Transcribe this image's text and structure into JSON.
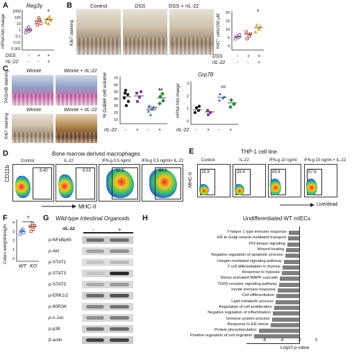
{
  "panels": {
    "A": {
      "label": "A",
      "gene": "Reg3γ",
      "ylabel": "mRNA fold change",
      "yticks": [
        "1000",
        "100",
        "10",
        "1",
        "0.1",
        "0.01",
        "0.001"
      ],
      "rows": [
        {
          "name": "DSS",
          "values": [
            "-",
            "+",
            "+"
          ]
        },
        {
          "name": "rIL-22",
          "values": [
            "-",
            "-",
            "+"
          ]
        }
      ],
      "star": "*"
    },
    "B": {
      "label": "B",
      "titles": [
        "Control",
        "DSS",
        "DSS + rIL-22"
      ],
      "stain": "Ki67 staining",
      "ylabel": "Ki67⁺ cells/150 μM",
      "yticks": [
        "20",
        "15",
        "10",
        "5",
        "0"
      ],
      "rows": [
        {
          "name": "DSS",
          "values": [
            "-",
            "+",
            "+"
          ]
        },
        {
          "name": "rIL-22",
          "values": [
            "-",
            "-",
            "+"
          ]
        }
      ],
      "star": "*"
    },
    "C": {
      "label": "C",
      "titles": [
        "Winnie",
        "Winnie + rIL-22"
      ],
      "stain_top": "PAS/AB staining",
      "stain_bottom": "Ki67 staining",
      "bottom_titles": [
        "Winnie",
        "Winnie + rIL-22"
      ],
      "goblet": {
        "ylabel": "% Goblet cell volume",
        "yticks": [
          "70",
          "60",
          "50",
          "40",
          "30",
          "20",
          "10"
        ],
        "sig1": "####",
        "sig2": "**",
        "row": {
          "name": "rIL-22",
          "values": [
            "-",
            "+",
            "-",
            "+"
          ]
        }
      },
      "grp": {
        "gene": "Grp78",
        "ylabel": "mRNA fold change",
        "yticks": [
          "3",
          "2",
          "1",
          "0"
        ],
        "sig": "##",
        "row": {
          "name": "rIL-22",
          "values": [
            "-",
            "+",
            "-",
            "+"
          ]
        }
      }
    },
    "D": {
      "label": "D",
      "title": "Bone marrow derived macrophages",
      "ylabel": "CD11b",
      "xlabel": "MHC-II",
      "plots": [
        {
          "title": "Control",
          "value": "6.40"
        },
        {
          "title": "IL-22",
          "value": "6.53"
        },
        {
          "title": "IFN-g 0.5 ng/ml",
          "value": "61.5"
        },
        {
          "title": "IFN-g 0.5 ng/ml+ IL-22",
          "value": "64.6"
        }
      ]
    },
    "E": {
      "label": "E",
      "title": "THP-1 cell line",
      "ylabel": "MHC-II",
      "xlabel": "Live/dead",
      "plots": [
        {
          "title": "Control",
          "value": "25.9"
        },
        {
          "title": "IL-22",
          "value": "28.4"
        },
        {
          "title": "IFN-g 10 ng/ml",
          "value": "65.8"
        },
        {
          "title": "IFN-g 10 ng/ml + IL-22",
          "value": "67.8"
        }
      ]
    },
    "F": {
      "label": "F",
      "ylabel": "Colon weight/length",
      "yticks": [
        "4",
        "3",
        "2",
        "1",
        "0"
      ],
      "categories": [
        "WT",
        "KO"
      ],
      "star": "*"
    },
    "G": {
      "label": "G",
      "title": "Wild-type Intestinal Organoids",
      "lane_label": "rIL-22",
      "lanes": [
        "-",
        "+"
      ],
      "rows": [
        "p-NFκBp65",
        "p-Akt",
        "p-STAT1",
        "p-STAT3",
        "p-STAT5",
        "p-ERK1/2",
        "p-90RSK",
        "p-c-Jun",
        "p-p38",
        "β-actin"
      ]
    },
    "H": {
      "label": "H",
      "title": "Undifferentiated WT mIECs",
      "xlabel": "Log10 p-value",
      "xticks": [
        "-6",
        "-4",
        "-2",
        "0"
      ]
    }
  },
  "chart_data": [
    {
      "type": "bar",
      "title": "Undifferentiated WT mIECs",
      "xlabel": "Log10 p-value",
      "ylabel": "",
      "xlim": [
        -6,
        0
      ],
      "categories": [
        "T-helper 1 type immune response",
        "ER to Golgi vesicle-mediated transport",
        "PI3-kinase signaling",
        "Wound healing",
        "Negative regulation of apoptotic process",
        "Integrin-mediated signaling pathway",
        "T cell differentiation in thymus",
        "Response to hypoxia",
        "Stress-activated MAPK cascade",
        "TGFβ receptor signaling pathway",
        "Innate immune response",
        "Cell differentiation",
        "Lipid metabolic process",
        "Regulation of cell proliferation",
        "Negative regulation of inflammation",
        "Immune system process",
        "Response to ER stress",
        "Protein phosphorylation",
        "Positive regulation of cell migration"
      ],
      "values": [
        -1.2,
        -1.25,
        -1.35,
        -1.5,
        -1.6,
        -1.75,
        -1.9,
        -2.0,
        -2.2,
        -2.3,
        -2.45,
        -2.6,
        -2.7,
        -2.85,
        -3.0,
        -3.1,
        -3.25,
        -4.6,
        -5.1
      ]
    }
  ]
}
